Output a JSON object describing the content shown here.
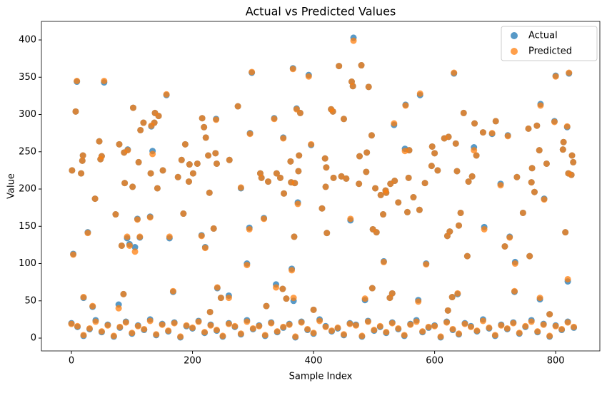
{
  "chart_data": {
    "type": "scatter",
    "title": "Actual vs Predicted Values",
    "x_label": "Sample Index",
    "y_label": "Value",
    "x": [
      1,
      3,
      7,
      9,
      16,
      18,
      19,
      20,
      27,
      35,
      39,
      46,
      48,
      50,
      54,
      73,
      78,
      79,
      83,
      86,
      87,
      88,
      92,
      93,
      96,
      101,
      102,
      105,
      109,
      111,
      113,
      114,
      119,
      130,
      131,
      132,
      134,
      137,
      138,
      142,
      144,
      151,
      157,
      162,
      168,
      176,
      182,
      185,
      188,
      194,
      195,
      201,
      208,
      215,
      216,
      219,
      221,
      222,
      226,
      228,
      229,
      235,
      238,
      239,
      240,
      241,
      247,
      260,
      261,
      275,
      280,
      290,
      294,
      295,
      298,
      312,
      314,
      318,
      322,
      325,
      335,
      338,
      339,
      345,
      349,
      350,
      351,
      355,
      362,
      363,
      364,
      366,
      367,
      368,
      369,
      372,
      374,
      375,
      376,
      378,
      392,
      396,
      400,
      414,
      419,
      420,
      421,
      422,
      429,
      432,
      433,
      442,
      446,
      450,
      454,
      461,
      463,
      465,
      466,
      475,
      476,
      479,
      485,
      487,
      488,
      491,
      496,
      497,
      498,
      502,
      504,
      511,
      515,
      516,
      519,
      520,
      526,
      527,
      530,
      533,
      534,
      540,
      551,
      552,
      555,
      557,
      558,
      565,
      573,
      575,
      576,
      584,
      586,
      595,
      596,
      600,
      605,
      616,
      621,
      622,
      623,
      625,
      629,
      632,
      635,
      637,
      638,
      640,
      643,
      648,
      654,
      656,
      662,
      665,
      666,
      669,
      680,
      682,
      695,
      701,
      709,
      716,
      721,
      724,
      732,
      733,
      736,
      746,
      755,
      757,
      760,
      761,
      765,
      769,
      773,
      774,
      775,
      781,
      785,
      790,
      798,
      800,
      812,
      813,
      816,
      819,
      820,
      821,
      822,
      826,
      827,
      829,
      0,
      10,
      20,
      30,
      40,
      50,
      60,
      70,
      80,
      90,
      100,
      110,
      120,
      130,
      140,
      150,
      160,
      170,
      180,
      190,
      200,
      210,
      220,
      230,
      240,
      250,
      260,
      270,
      280,
      290,
      300,
      310,
      320,
      330,
      340,
      350,
      360,
      370,
      380,
      390,
      400,
      410,
      420,
      430,
      440,
      450,
      460,
      470,
      480,
      490,
      500,
      510,
      520,
      530,
      540,
      550,
      560,
      570,
      580,
      590,
      600,
      610,
      620,
      630,
      640,
      650,
      660,
      670,
      680,
      690,
      700,
      710,
      720,
      730,
      740,
      750,
      760,
      770,
      780,
      790,
      800,
      810,
      820,
      830
    ],
    "series": [
      {
        "name": "Actual",
        "color": "#1f77b4",
        "values": [
          225,
          113,
          304,
          344,
          221,
          238,
          245,
          54,
          142,
          42,
          187,
          264,
          240,
          244,
          343,
          166,
          45,
          260,
          124,
          59,
          249,
          208,
          134,
          253,
          126,
          203,
          309,
          122,
          160,
          236,
          135,
          279,
          289,
          163,
          221,
          284,
          251,
          289,
          302,
          201,
          298,
          225,
          326,
          134,
          62,
          216,
          239,
          167,
          260,
          210,
          233,
          221,
          234,
          138,
          295,
          283,
          122,
          269,
          245,
          195,
          35,
          147,
          248,
          294,
          234,
          67,
          54,
          57,
          239,
          311,
          201,
          100,
          148,
          275,
          356,
          221,
          215,
          161,
          43,
          210,
          295,
          72,
          221,
          215,
          66,
          269,
          194,
          53,
          237,
          209,
          93,
          362,
          50,
          136,
          208,
          308,
          182,
          224,
          245,
          302,
          353,
          259,
          38,
          174,
          241,
          203,
          229,
          141,
          307,
          304,
          215,
          365,
          217,
          294,
          214,
          158,
          344,
          338,
          403,
          207,
          244,
          366,
          51,
          223,
          249,
          337,
          272,
          67,
          146,
          201,
          142,
          192,
          166,
          103,
          198,
          195,
          54,
          207,
          60,
          286,
          211,
          182,
          254,
          313,
          169,
          215,
          252,
          189,
          51,
          172,
          326,
          208,
          100,
          231,
          257,
          248,
          225,
          268,
          137,
          37,
          270,
          143,
          55,
          355,
          261,
          224,
          59,
          151,
          168,
          302,
          110,
          210,
          217,
          256,
          288,
          245,
          276,
          149,
          274,
          291,
          207,
          123,
          272,
          136,
          62,
          102,
          216,
          168,
          281,
          110,
          209,
          228,
          196,
          285,
          252,
          52,
          314,
          187,
          234,
          32,
          291,
          352,
          253,
          263,
          142,
          283,
          76,
          221,
          355,
          219,
          245,
          236,
          20,
          15,
          3,
          12,
          24,
          8,
          18,
          2,
          14,
          22,
          6,
          17,
          11,
          25,
          4,
          19,
          9,
          21,
          1,
          16,
          13,
          23,
          7,
          18,
          10,
          2,
          20,
          15,
          5,
          24,
          12,
          17,
          3,
          21,
          8,
          14,
          19,
          1,
          22,
          11,
          6,
          25,
          16,
          9,
          13,
          4,
          20,
          18,
          2,
          23,
          10,
          15,
          7,
          21,
          12,
          3,
          19,
          24,
          8,
          14,
          17,
          1,
          22,
          11,
          5,
          20,
          16,
          9,
          25,
          13,
          3,
          18,
          12,
          21,
          6,
          15,
          24,
          8,
          19,
          2,
          17,
          11,
          22,
          14
        ]
      },
      {
        "name": "Predicted",
        "color": "#ff7f0e",
        "values": [
          225,
          112,
          304,
          345,
          221,
          238,
          245,
          55,
          141,
          43,
          187,
          264,
          240,
          244,
          345,
          166,
          40,
          260,
          124,
          59,
          249,
          208,
          136,
          252,
          124,
          203,
          309,
          116,
          159,
          236,
          136,
          279,
          289,
          162,
          221,
          285,
          247,
          289,
          302,
          201,
          298,
          225,
          327,
          136,
          63,
          216,
          239,
          167,
          260,
          210,
          233,
          221,
          234,
          137,
          295,
          283,
          121,
          269,
          245,
          195,
          35,
          147,
          248,
          293,
          234,
          68,
          54,
          54,
          239,
          311,
          202,
          98,
          146,
          274,
          357,
          221,
          215,
          160,
          43,
          210,
          294,
          68,
          221,
          215,
          66,
          268,
          194,
          53,
          237,
          209,
          91,
          361,
          54,
          136,
          208,
          307,
          180,
          224,
          245,
          302,
          351,
          260,
          38,
          174,
          241,
          203,
          229,
          141,
          307,
          304,
          215,
          365,
          217,
          294,
          214,
          160,
          344,
          338,
          399,
          207,
          244,
          366,
          53,
          223,
          249,
          337,
          272,
          67,
          146,
          201,
          142,
          192,
          166,
          102,
          198,
          195,
          54,
          207,
          60,
          288,
          211,
          182,
          251,
          312,
          169,
          215,
          252,
          189,
          49,
          172,
          328,
          208,
          99,
          231,
          257,
          248,
          225,
          268,
          137,
          37,
          270,
          143,
          55,
          356,
          261,
          224,
          60,
          151,
          168,
          302,
          110,
          210,
          217,
          252,
          288,
          245,
          276,
          146,
          275,
          291,
          205,
          123,
          271,
          135,
          63,
          100,
          216,
          168,
          281,
          110,
          209,
          228,
          196,
          285,
          252,
          54,
          312,
          186,
          234,
          32,
          290,
          351,
          253,
          263,
          142,
          284,
          79,
          221,
          356,
          219,
          245,
          236,
          19,
          16,
          4,
          13,
          22,
          9,
          17,
          3,
          15,
          21,
          7,
          16,
          12,
          23,
          5,
          18,
          10,
          20,
          2,
          17,
          14,
          22,
          8,
          17,
          11,
          3,
          19,
          16,
          6,
          22,
          13,
          16,
          4,
          20,
          9,
          15,
          18,
          2,
          21,
          12,
          7,
          23,
          15,
          10,
          14,
          5,
          19,
          17,
          3,
          22,
          11,
          16,
          8,
          20,
          13,
          4,
          18,
          22,
          9,
          15,
          16,
          2,
          21,
          12,
          6,
          19,
          15,
          10,
          23,
          14,
          4,
          17,
          13,
          20,
          7,
          16,
          22,
          9,
          18,
          3,
          16,
          12,
          21,
          15
        ]
      }
    ],
    "xlim": [
      -49.6,
      873
    ],
    "ylim": [
      -17.2,
      424.9
    ],
    "xticks": [
      0,
      200,
      400,
      600,
      800
    ],
    "yticks": [
      0,
      50,
      100,
      150,
      200,
      250,
      300,
      350,
      400
    ],
    "legend": "upper right"
  }
}
